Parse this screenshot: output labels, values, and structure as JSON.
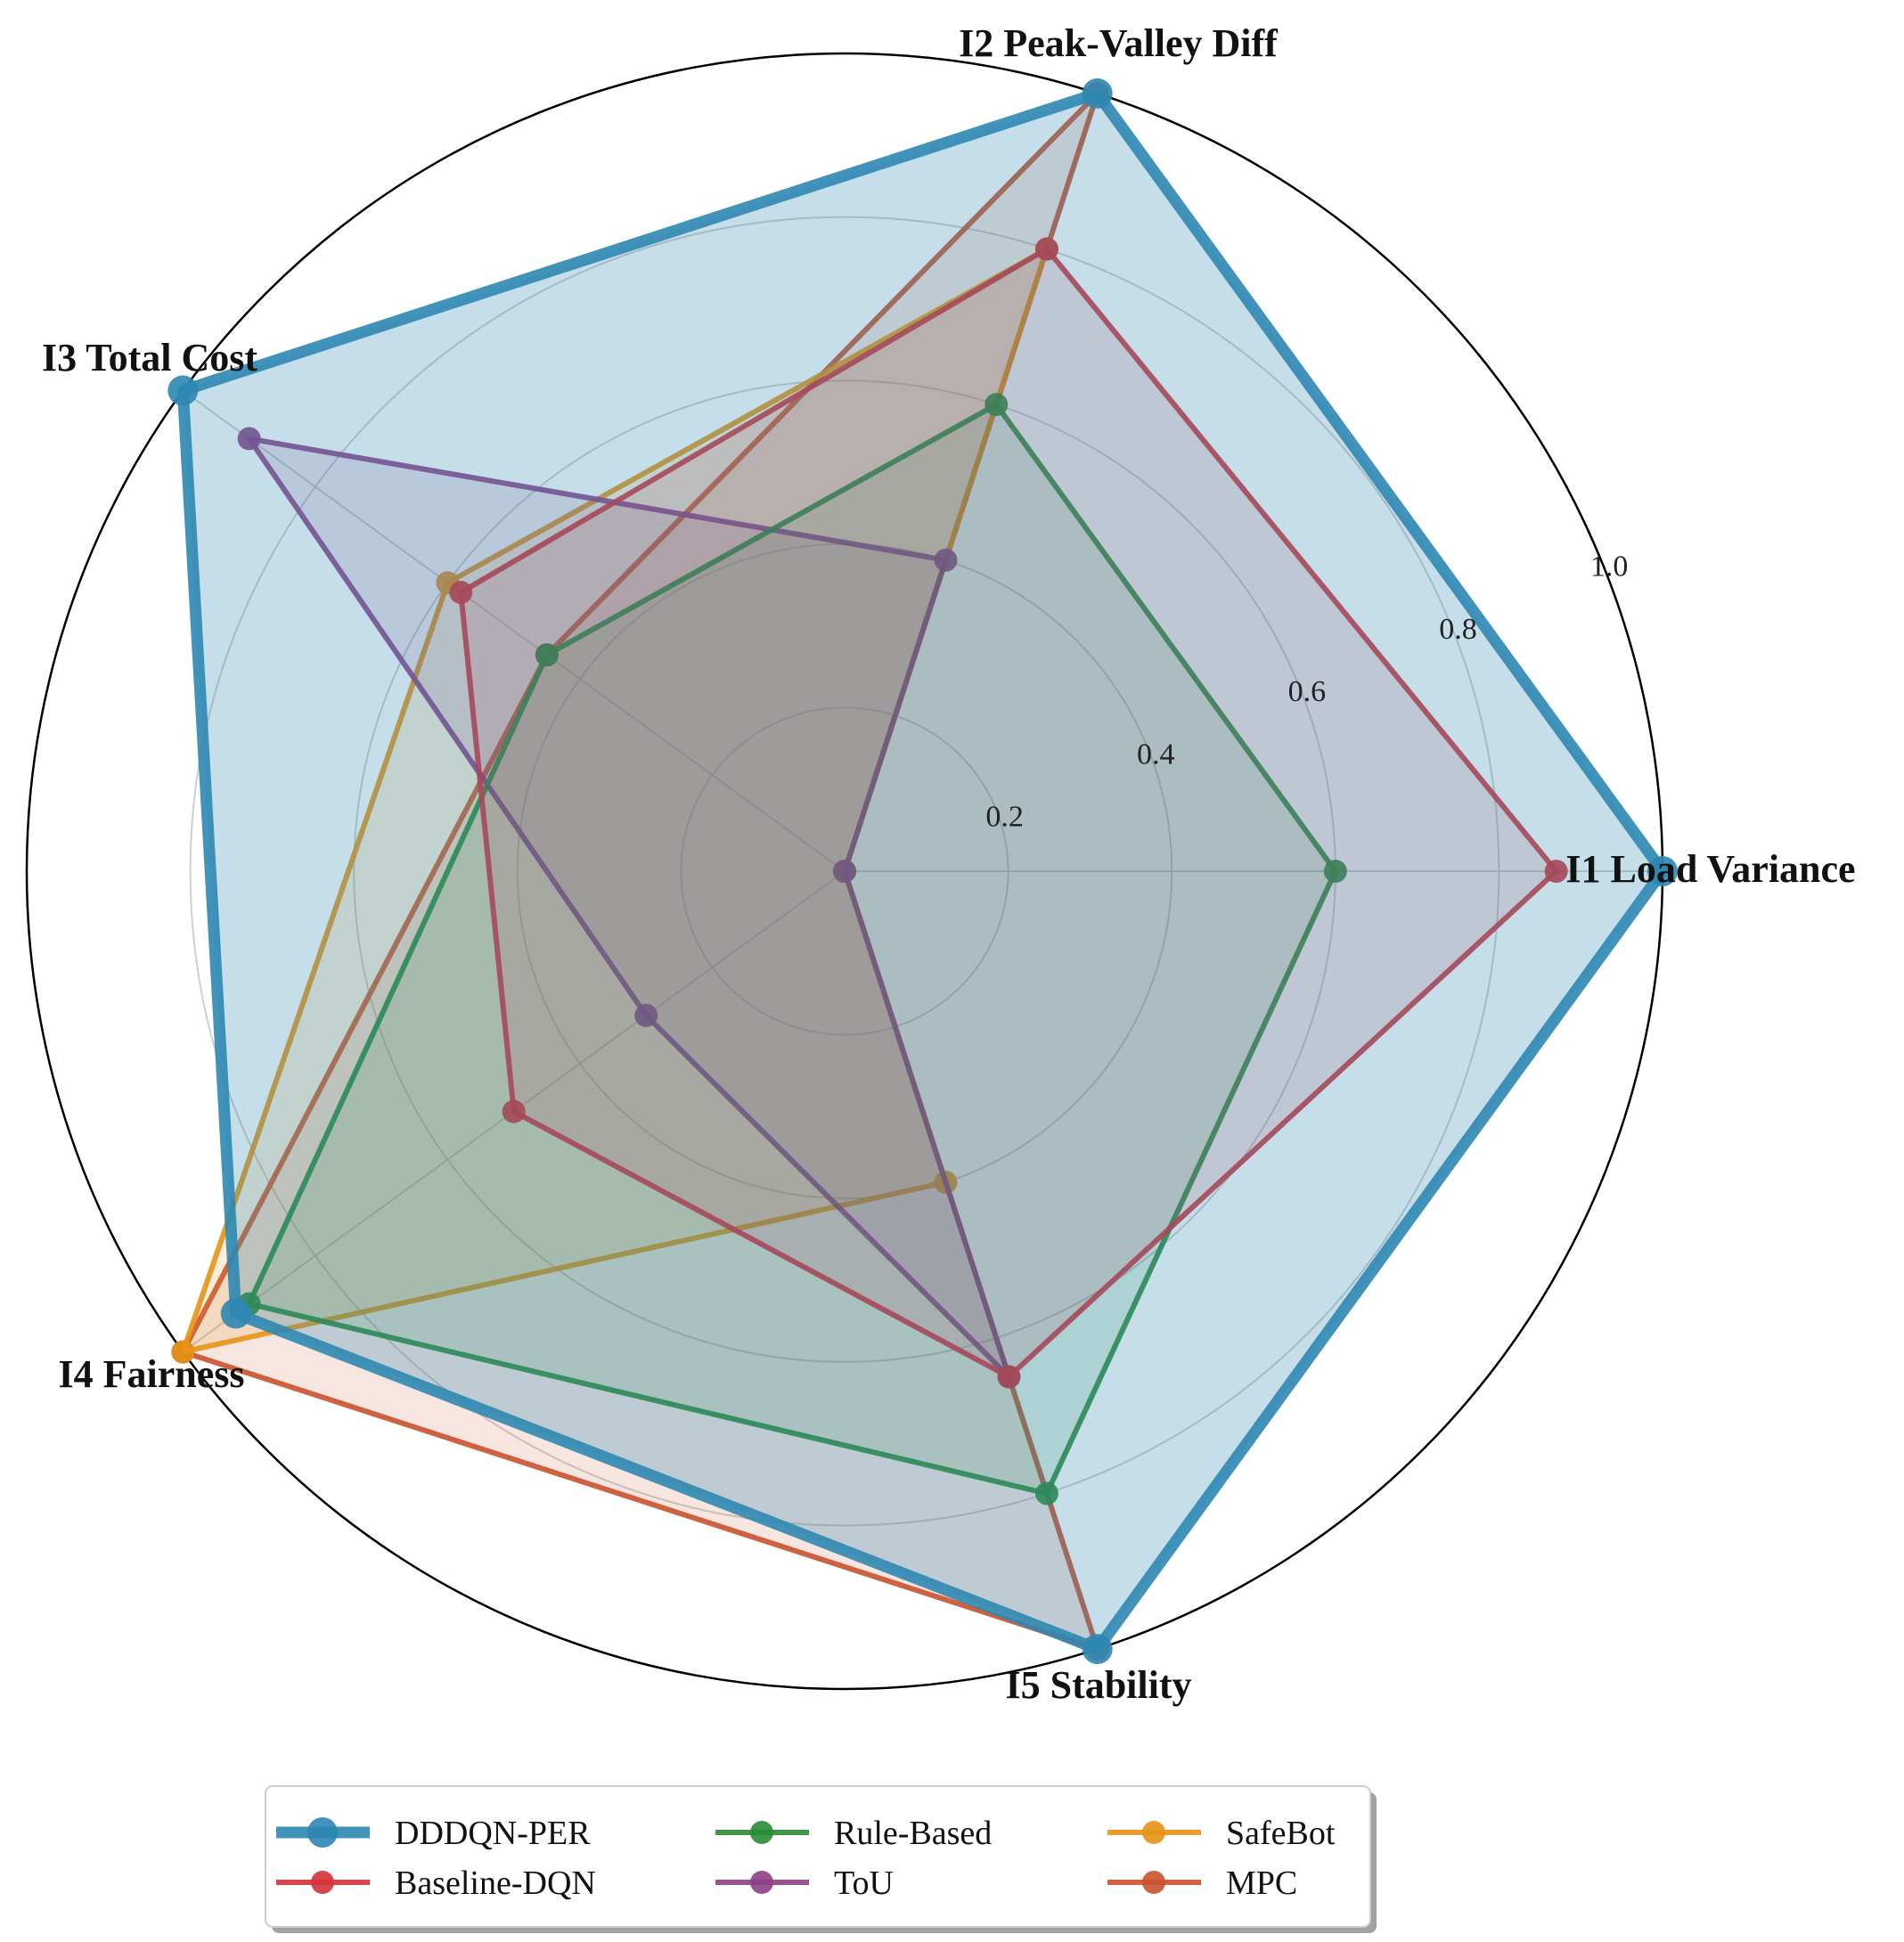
{
  "chart_data": {
    "type": "radar",
    "title": "",
    "axes": [
      "I1 Load Variance",
      "I2 Peak-Valley Diff",
      "I3 Total Cost",
      "I4 Fairness",
      "I5 Stability"
    ],
    "radial_ticks": [
      "0.2",
      "0.4",
      "0.6",
      "0.8",
      "1.0"
    ],
    "rlim": [
      0,
      1.0
    ],
    "grid": true,
    "legend_placement": "bottom-center",
    "series": [
      {
        "name": "MPC",
        "color": "#c9512d",
        "values": [
          0.0,
          1.0,
          0.45,
          1.0,
          1.0
        ]
      },
      {
        "name": "SafeBot",
        "color": "#e69416",
        "values": [
          0.0,
          0.8,
          0.6,
          1.0,
          0.4
        ]
      },
      {
        "name": "ToU",
        "color": "#8e3f86",
        "values": [
          0.0,
          0.4,
          0.9,
          0.3,
          0.65
        ]
      },
      {
        "name": "Rule-Based",
        "color": "#2a8a36",
        "values": [
          0.6,
          0.6,
          0.45,
          0.9,
          0.8
        ]
      },
      {
        "name": "Baseline-DQN",
        "color": "#d3313a",
        "values": [
          0.87,
          0.8,
          0.58,
          0.5,
          0.65
        ]
      },
      {
        "name": "DDDQN-PER",
        "color": "#2e87b1",
        "values": [
          1.0,
          1.0,
          1.0,
          0.92,
          1.0
        ]
      }
    ],
    "legend_order": [
      "DDDQN-PER",
      "Baseline-DQN",
      "Rule-Based",
      "ToU",
      "SafeBot",
      "MPC"
    ]
  }
}
